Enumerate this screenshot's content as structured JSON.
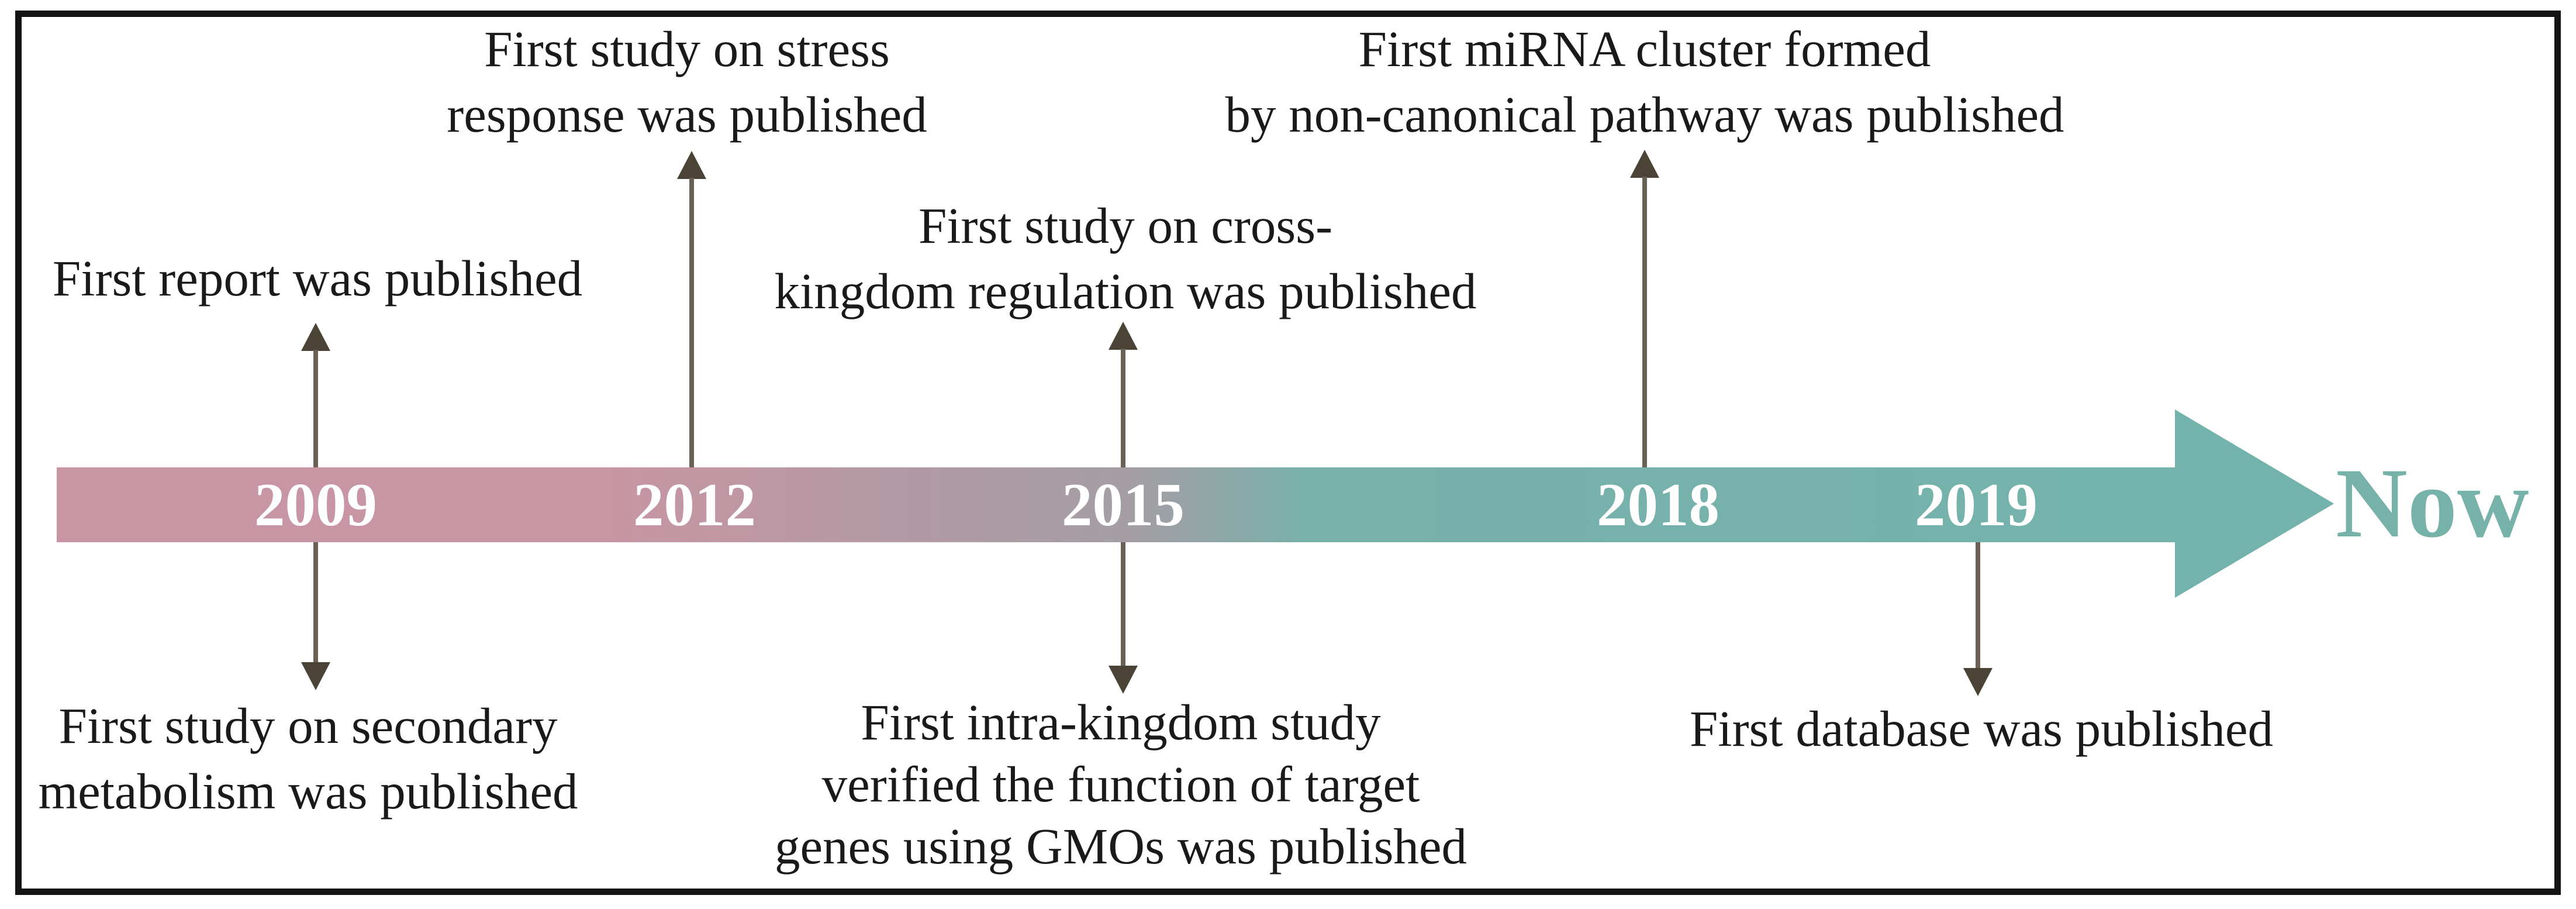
{
  "figure": {
    "type": "timeline-diagram",
    "title_none_shown": "",
    "axis": {
      "years": [
        "2009",
        "2012",
        "2015",
        "2018",
        "2019"
      ],
      "end_label": "Now",
      "direction": "left-to-right"
    },
    "events": [
      {
        "year": "2009",
        "position": "above",
        "text": "First report was published"
      },
      {
        "year": "2009",
        "position": "below",
        "text": "First study on secondary\nmetabolism was published"
      },
      {
        "year": "2012",
        "position": "above",
        "text": "First study on stress\nresponse was published"
      },
      {
        "year": "2015",
        "position": "above",
        "text": "First study on cross-\nkingdom regulation was published"
      },
      {
        "year": "2015",
        "position": "below",
        "text": "First intra-kingdom study\nverified the function of target\ngenes using GMOs was published"
      },
      {
        "year": "2018",
        "position": "above",
        "text": "First miRNA cluster formed\nby non-canonical pathway was published"
      },
      {
        "year": "2019",
        "position": "below",
        "text": "First database was published"
      }
    ],
    "colors": {
      "bar_start_pink": "#c795a3",
      "bar_end_teal": "#74b2ac",
      "now_text_teal": "#76b1aa",
      "connector_arrow": "#4b4335",
      "year_text": "#ffffff",
      "frame_border": "#141414"
    }
  }
}
